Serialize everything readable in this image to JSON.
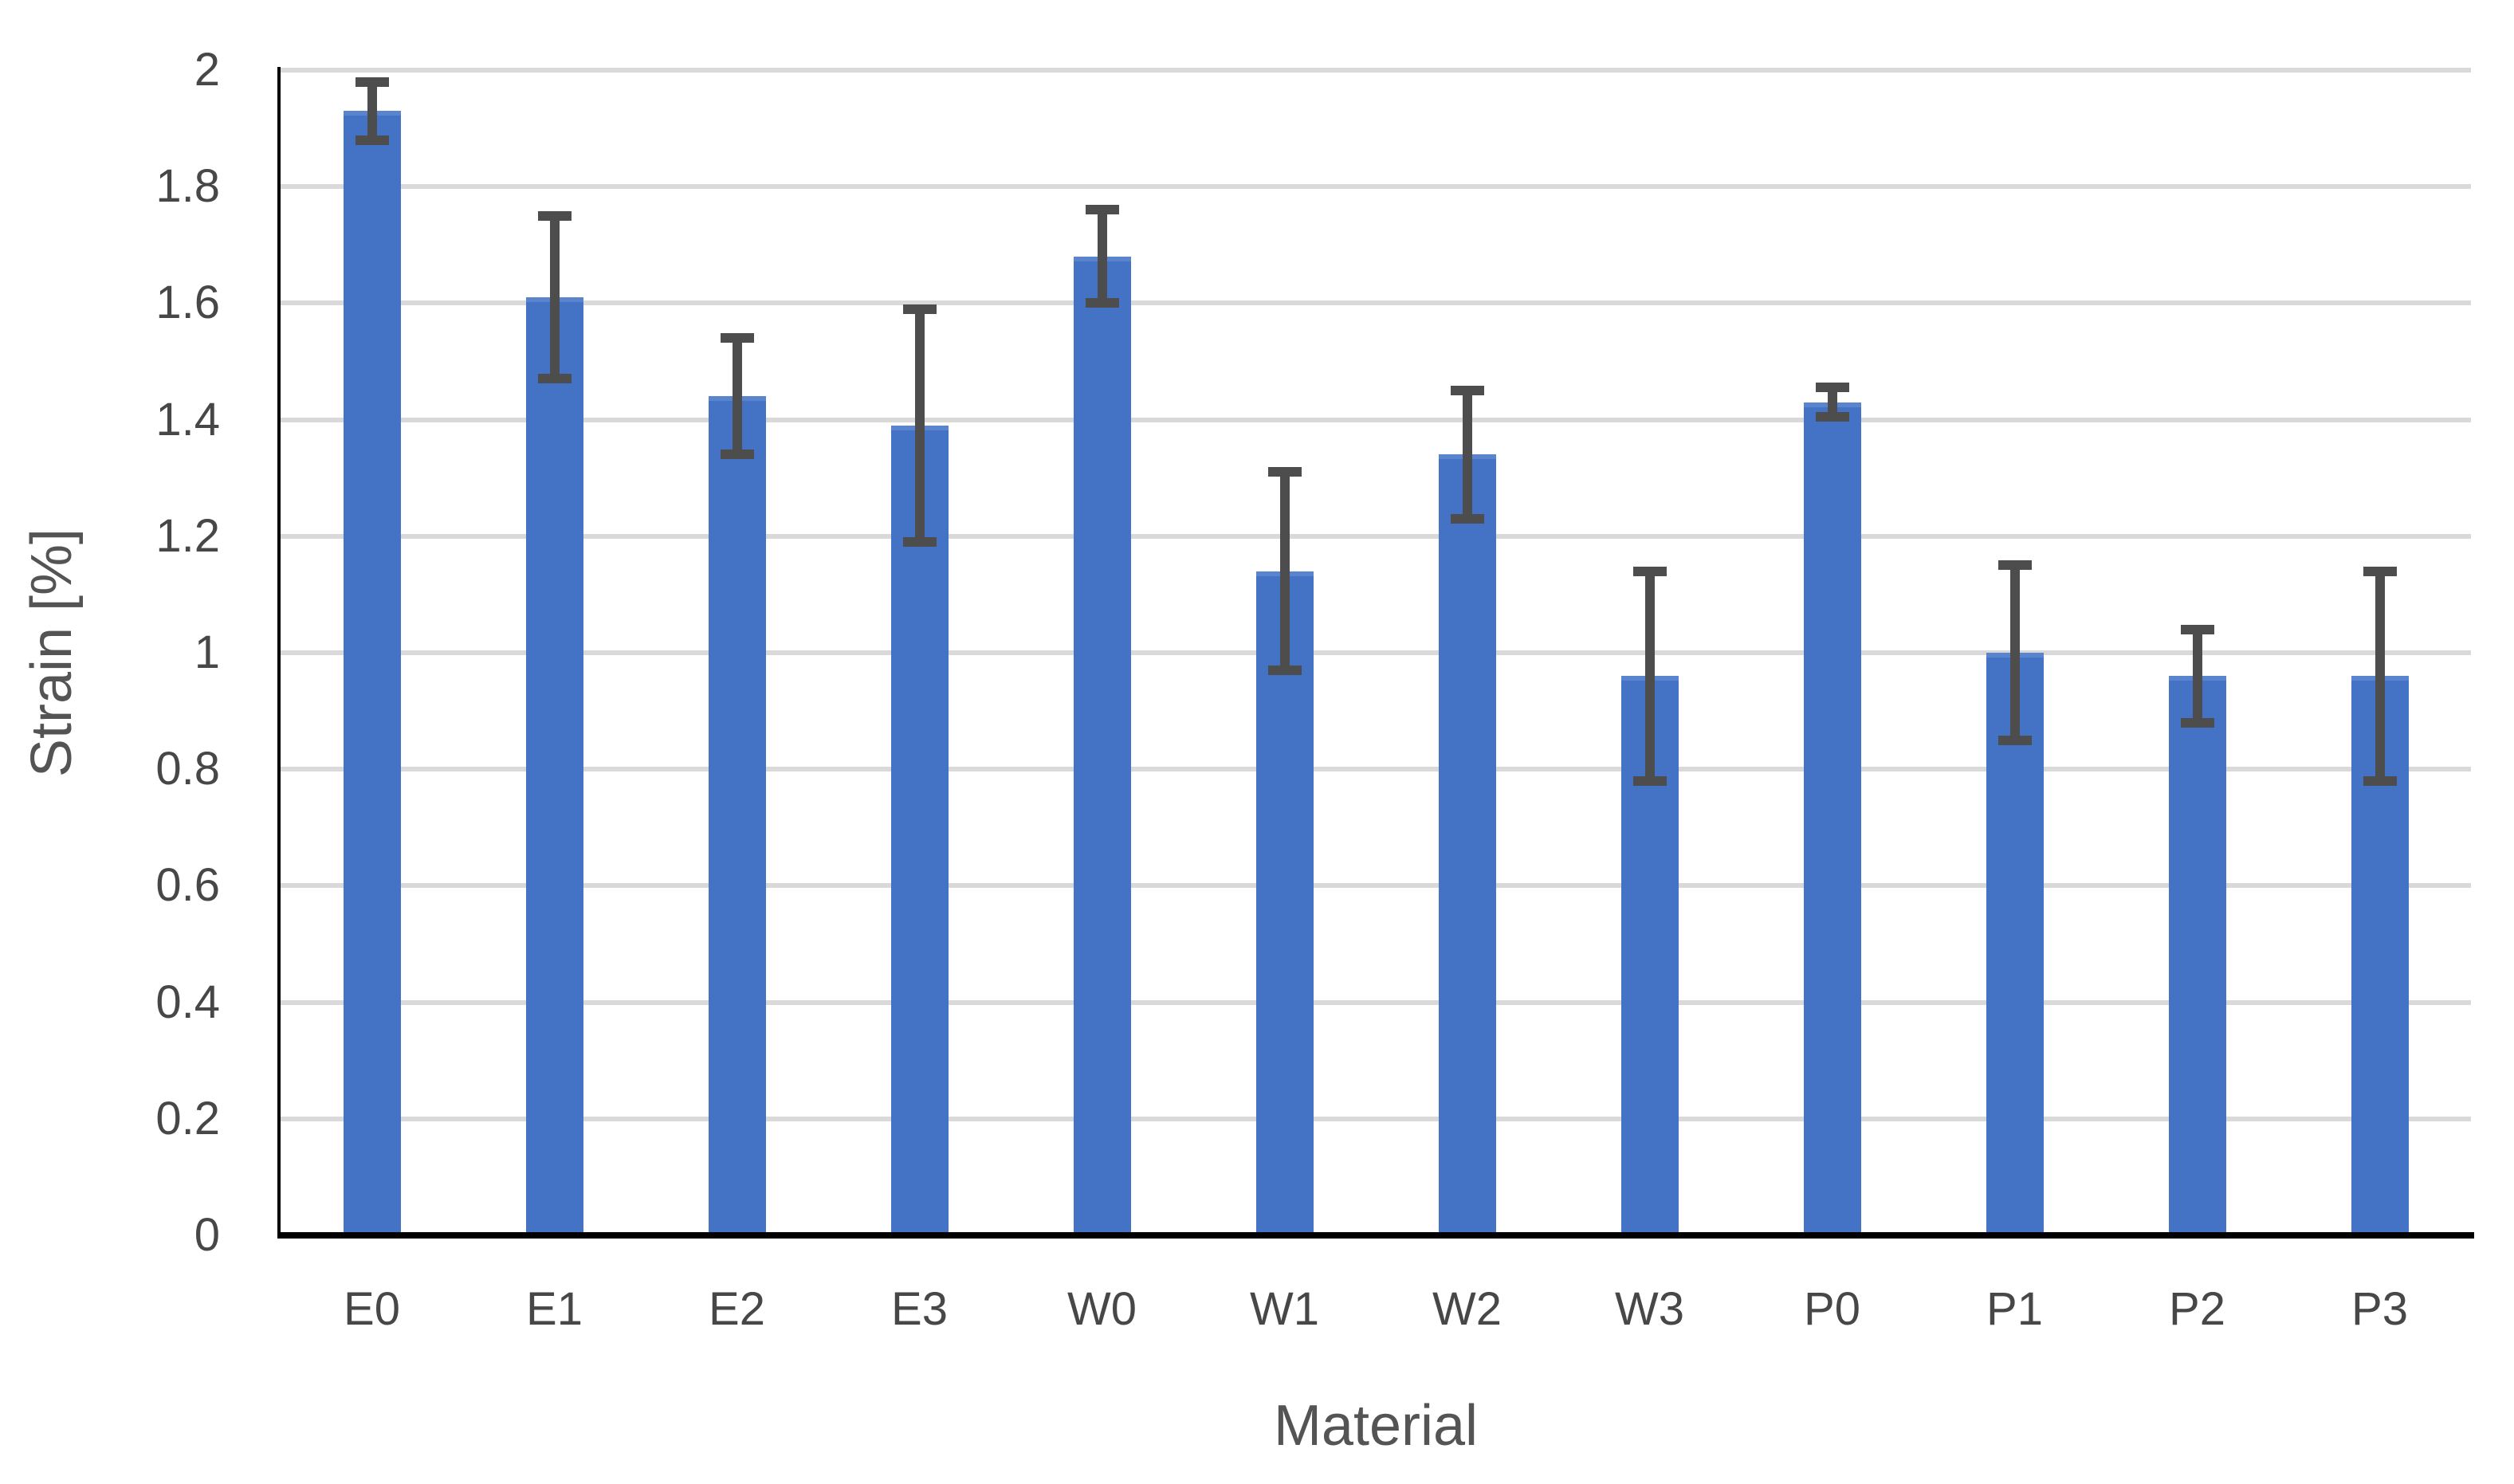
{
  "figure": {
    "background": "#ffffff"
  },
  "chart_data": {
    "type": "bar",
    "title": "",
    "xlabel": "Material",
    "ylabel": "Strain [%]",
    "categories": [
      "E0",
      "E1",
      "E2",
      "E3",
      "W0",
      "W1",
      "W2",
      "W3",
      "P0",
      "P1",
      "P2",
      "P3"
    ],
    "values": [
      1.93,
      1.61,
      1.44,
      1.39,
      1.68,
      1.14,
      1.34,
      0.96,
      1.43,
      1.0,
      0.96,
      0.96
    ],
    "error_plus": [
      0.05,
      0.14,
      0.1,
      0.2,
      0.08,
      0.17,
      0.11,
      0.18,
      0.025,
      0.15,
      0.08,
      0.18
    ],
    "error_minus": [
      0.05,
      0.14,
      0.1,
      0.2,
      0.08,
      0.17,
      0.11,
      0.18,
      0.025,
      0.15,
      0.08,
      0.18
    ],
    "ylim": [
      0,
      2
    ],
    "ytick_step": 0.2,
    "yticks": [
      0,
      0.2,
      0.4,
      0.6,
      0.8,
      1,
      1.2,
      1.4,
      1.6,
      1.8,
      2
    ],
    "ytick_labels": [
      "0",
      "0.2",
      "0.4",
      "0.6",
      "0.8",
      "1",
      "1.2",
      "1.4",
      "1.6",
      "1.8",
      "2"
    ],
    "grid": true,
    "legend": false,
    "bar_color": "#4472c4",
    "bar_top_edge_color": "#5b84ce",
    "error_bar_color": "#4d4d4d",
    "gridline_color": "#d9d9d9",
    "axis_line_color": "#000000",
    "tick_text_color": "#474747",
    "title_text_color": "#545454"
  }
}
